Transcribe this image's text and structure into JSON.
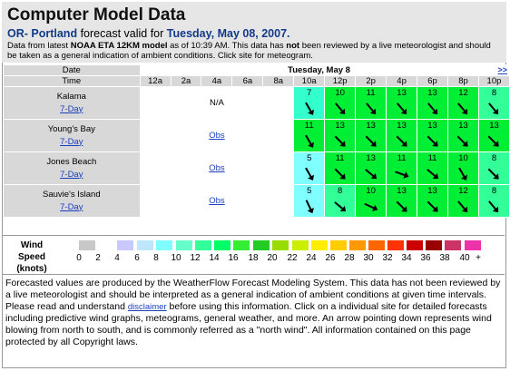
{
  "header": {
    "title": "Computer Model Data",
    "region": "OR- Portland",
    "valid_text": "forecast valid for",
    "valid_date": "Tuesday, May 08, 2007.",
    "note_1": "Data from latest ",
    "note_model": "NOAA ETA 12KM model",
    "note_2": " as of 10:39 AM. This data has ",
    "note_not": "not",
    "note_3": " been reviewed by a live meteorologist and should be taken as a general indication of ambient conditions. Click site for meteogram."
  },
  "grid": {
    "date_label": "Date",
    "time_label": "Time",
    "day": "Tuesday, May 8",
    "next": ">>",
    "times": [
      "12a",
      "2a",
      "4a",
      "6a",
      "8a",
      "10a",
      "12p",
      "2p",
      "4p",
      "6p",
      "8p",
      "10p"
    ],
    "link_7day": "7-Day",
    "na": "N/A",
    "obs": "Obs",
    "sites": [
      {
        "name": "Kalama",
        "status": "N/A",
        "speeds": [
          7,
          10,
          11,
          13,
          13,
          12,
          8
        ],
        "dirs": [
          150,
          140,
          140,
          140,
          140,
          140,
          140
        ]
      },
      {
        "name": "Young's Bay",
        "status": "Obs",
        "speeds": [
          11,
          13,
          13,
          13,
          13,
          13,
          13
        ],
        "dirs": [
          150,
          135,
          135,
          135,
          135,
          135,
          135
        ]
      },
      {
        "name": "Jones Beach",
        "status": "Obs",
        "speeds": [
          5,
          11,
          13,
          11,
          11,
          10,
          8
        ],
        "dirs": [
          150,
          135,
          130,
          110,
          130,
          150,
          135
        ]
      },
      {
        "name": "Sauvie's Island",
        "status": "Obs",
        "speeds": [
          5,
          8,
          10,
          13,
          13,
          12,
          8
        ],
        "dirs": [
          155,
          130,
          115,
          135,
          135,
          140,
          140
        ]
      }
    ]
  },
  "legend": {
    "title_1": "Wind Speed",
    "title_2": "(knots)",
    "labels": [
      "0",
      "2",
      "4",
      "6",
      "8",
      "10",
      "12",
      "14",
      "16",
      "18",
      "20",
      "22",
      "24",
      "26",
      "28",
      "30",
      "32",
      "34",
      "36",
      "38",
      "40",
      "+"
    ],
    "colors": [
      "#c8c8c8",
      "#ffffff",
      "#c9c9ff",
      "#bfe6ff",
      "#7fffff",
      "#66ffcc",
      "#33ff99",
      "#00ff66",
      "#33ee33",
      "#22cc22",
      "#99dd00",
      "#ccee00",
      "#ffee00",
      "#ffcc00",
      "#ff9900",
      "#ff6600",
      "#ff3300",
      "#cc0000",
      "#990000",
      "#cc3366",
      "#ee33aa",
      "#ff33cc"
    ]
  },
  "footer": {
    "text_1": "Forecasted values are produced by the WeatherFlow Forecast Modeling System. This data has not been reviewed by a live meteorologist and should be interpreted as a general indication of ambient conditions at given time intervals. Please read and understand ",
    "disclaimer": "disclaimer",
    "text_2": " before using this information. Click on a individual site for detailed forecasts including predictive wind graphs, meteograms, general weather, and more. An arrow pointing down represents wind blowing from north to south, and is commonly referred as a \"north wind\". All information contained on this page protected by all Copyright laws."
  }
}
